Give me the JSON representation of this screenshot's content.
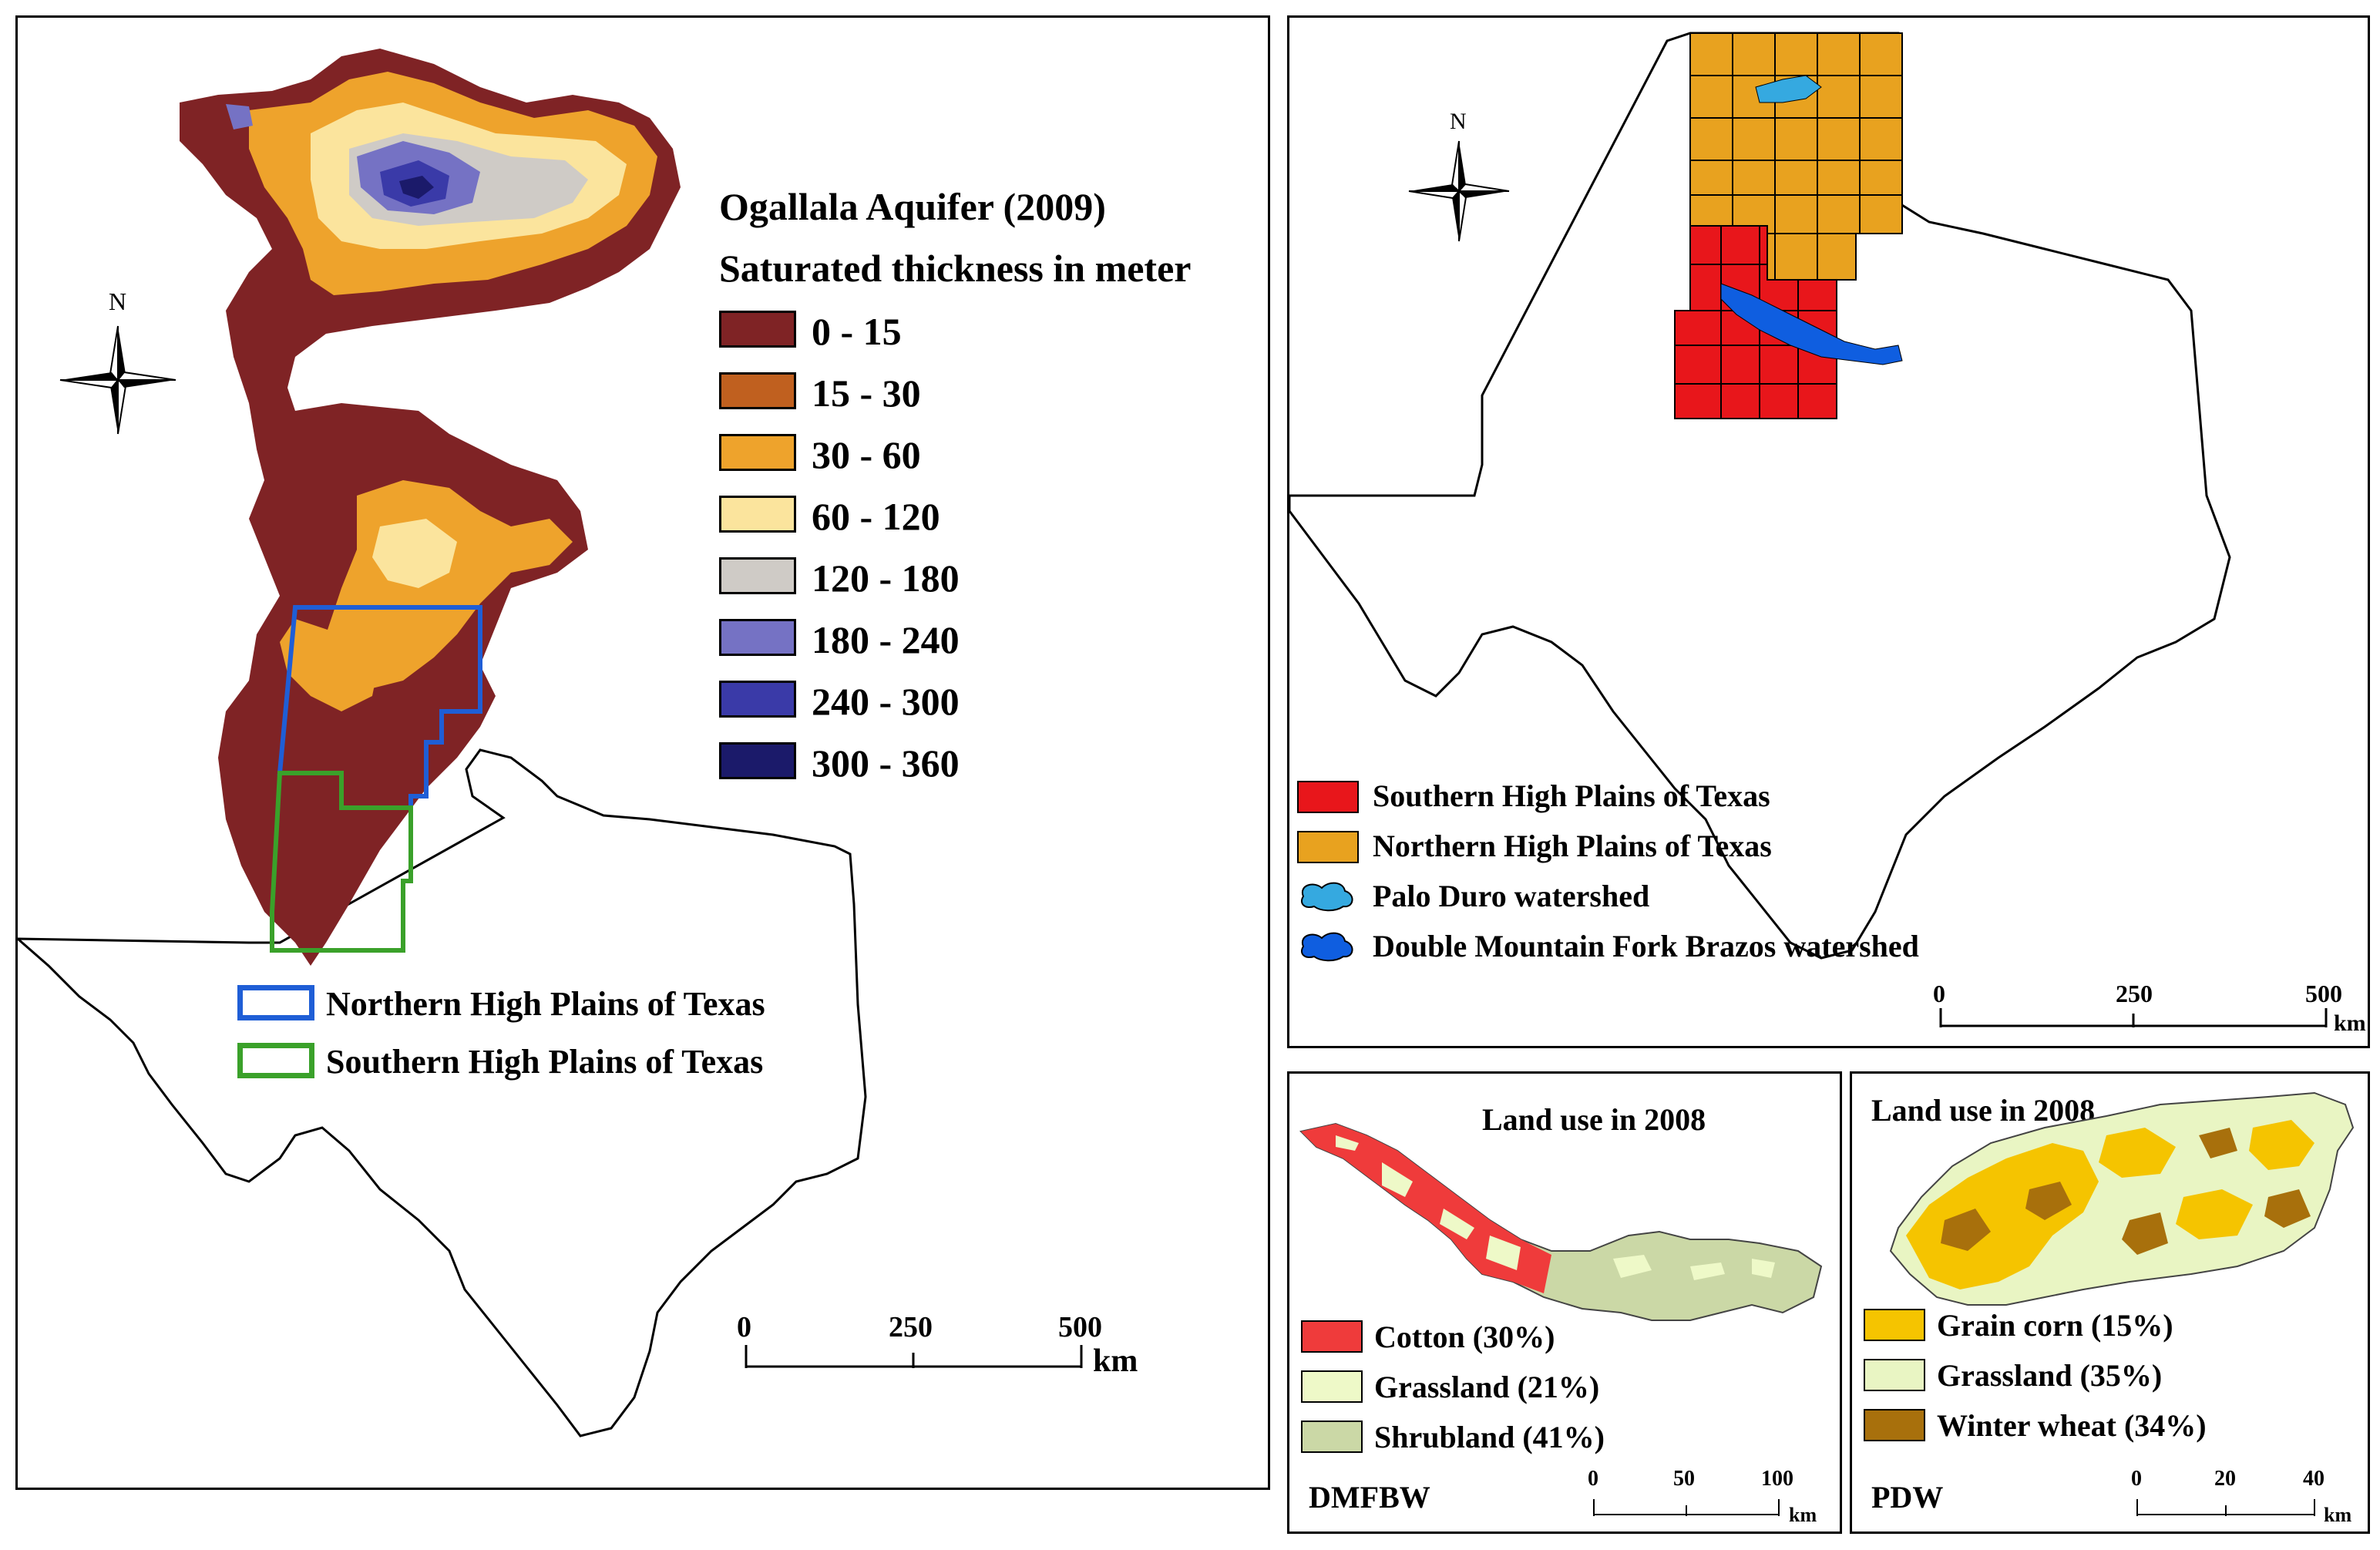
{
  "left_map": {
    "legend_title_1": "Ogallala Aquifer (2009)",
    "legend_title_2": "Saturated thickness in meter",
    "classes": [
      {
        "label": "0 - 15",
        "color": "#7f2325"
      },
      {
        "label": "15 - 30",
        "color": "#c0601f"
      },
      {
        "label": "30 - 60",
        "color": "#eea32c"
      },
      {
        "label": "60 - 120",
        "color": "#fbe49d"
      },
      {
        "label": "120 - 180",
        "color": "#cfcbc6"
      },
      {
        "label": "180 - 240",
        "color": "#7572c4"
      },
      {
        "label": "240 - 300",
        "color": "#3a3aa8"
      },
      {
        "label": "300 - 360",
        "color": "#1b1a6a"
      }
    ],
    "outline_legend": [
      {
        "label": "Northern High Plains of Texas",
        "color": "#1f5ed6"
      },
      {
        "label": "Southern High Plains of Texas",
        "color": "#3aa12a"
      }
    ],
    "north_label": "N",
    "scale": {
      "ticks": [
        "0",
        "250",
        "500"
      ],
      "unit": "km"
    }
  },
  "top_right_map": {
    "north_label": "N",
    "legend": [
      {
        "label": "Southern High Plains of Texas",
        "color": "#e8161b"
      },
      {
        "label": "Northern High Plains of Texas",
        "color": "#e8a21f"
      },
      {
        "label": "Palo Duro watershed",
        "color": "#35a9e0"
      },
      {
        "label": "Double Mountain Fork Brazos watershed",
        "color": "#0f5ee0"
      }
    ],
    "scale": {
      "ticks": [
        "0",
        "250",
        "500"
      ],
      "unit": "km"
    }
  },
  "dmfbw_panel": {
    "title": "Land use in 2008",
    "name": "DMFBW",
    "legend": [
      {
        "label": "Cotton (30%)",
        "color": "#ef3b3b"
      },
      {
        "label": "Grassland (21%)",
        "color": "#eef9c8"
      },
      {
        "label": "Shrubland (41%)",
        "color": "#cbd8a6"
      }
    ],
    "scale": {
      "ticks": [
        "0",
        "50",
        "100"
      ],
      "unit": "km"
    }
  },
  "pdw_panel": {
    "title": "Land use in 2008",
    "name": "PDW",
    "legend": [
      {
        "label": "Grain corn (15%)",
        "color": "#f5c400"
      },
      {
        "label": "Grassland (35%)",
        "color": "#e9f5c3"
      },
      {
        "label": "Winter wheat (34%)",
        "color": "#a8700c"
      }
    ],
    "scale": {
      "ticks": [
        "0",
        "20",
        "40"
      ],
      "unit": "km"
    }
  }
}
